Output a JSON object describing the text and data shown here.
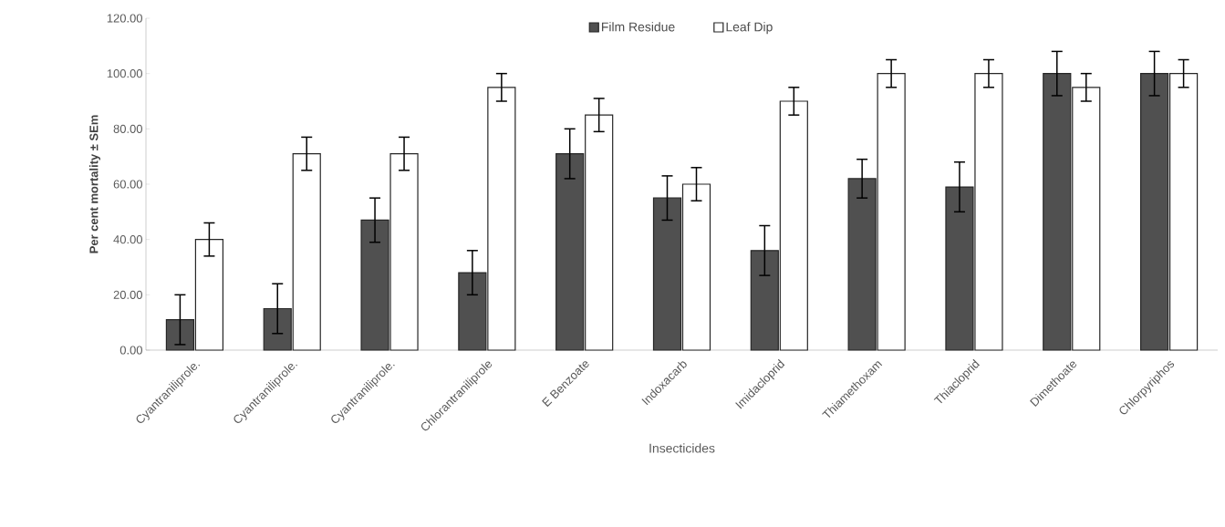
{
  "chart_data": {
    "type": "bar",
    "xlabel": "Insecticides",
    "ylabel": "Per cent mortality ± SEm",
    "categories": [
      "Cyantraniliprole.",
      "Cyantraniliprole.",
      "Cyantraniliprole.",
      "Chlorantraniliprole",
      "E Benzoate",
      "Indoxacarb",
      "Imidacloprid",
      "Thiamethoxam",
      "Thiacloprid",
      "Dimethoate",
      "Chlorpyriphos"
    ],
    "series": [
      {
        "name": "Film Residue",
        "color": "#505050",
        "values": [
          11,
          15,
          47,
          28,
          71,
          55,
          36,
          62,
          59,
          100,
          100
        ],
        "errors": [
          9,
          9,
          8,
          8,
          9,
          8,
          9,
          7,
          9,
          8,
          8
        ]
      },
      {
        "name": "Leaf Dip",
        "color": "#ffffff",
        "values": [
          40,
          71,
          71,
          95,
          85,
          60,
          90,
          100,
          100,
          95,
          100
        ],
        "errors": [
          6,
          6,
          6,
          5,
          6,
          6,
          5,
          5,
          5,
          5,
          5
        ]
      }
    ],
    "ylim": [
      0,
      120
    ],
    "yticks": [
      {
        "value": 0,
        "label": "0.00"
      },
      {
        "value": 20,
        "label": "20.00"
      },
      {
        "value": 40,
        "label": "40.00"
      },
      {
        "value": 60,
        "label": "60.00"
      },
      {
        "value": 80,
        "label": "80.00"
      },
      {
        "value": 100,
        "label": "100.00"
      },
      {
        "value": 120,
        "label": "120.00"
      }
    ],
    "legend": "top",
    "grid": false
  }
}
